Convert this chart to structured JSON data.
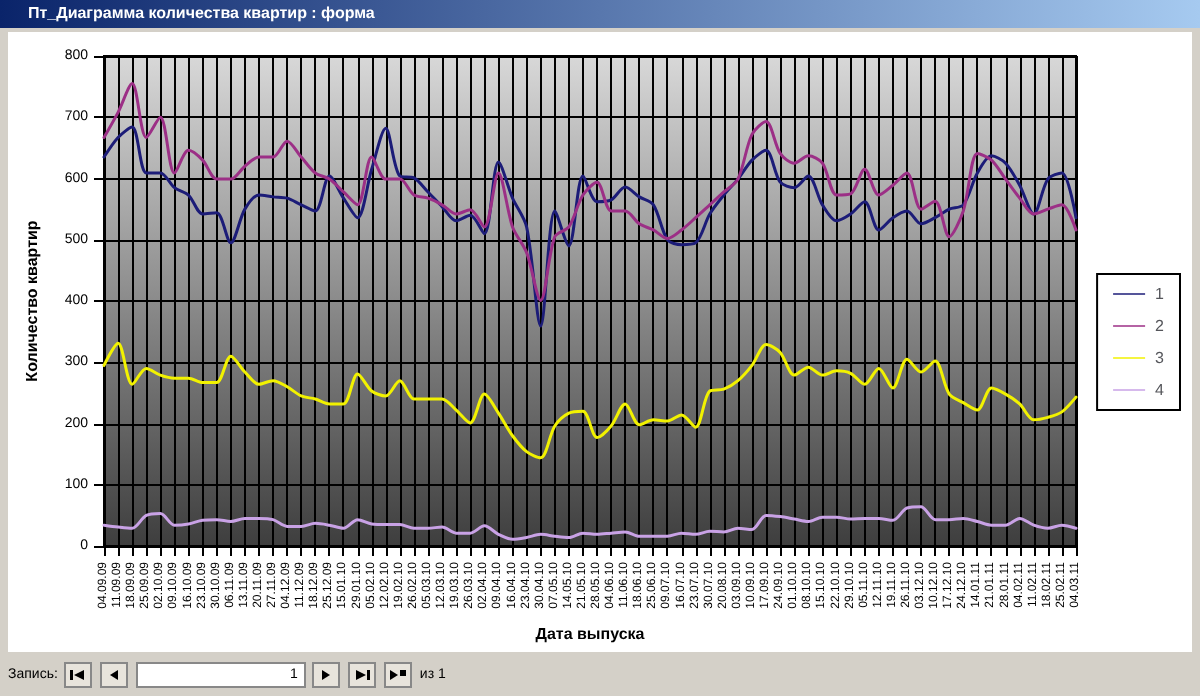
{
  "chart_data": {
    "type": "line",
    "title": "Пт_Диаграмма количества квартир : форма",
    "xlabel": "Дата выпуска",
    "ylabel": "Количество квартир",
    "annotations": [
      "Запись:",
      "1",
      "из 1"
    ],
    "categories": [
      "04.09.09",
      "11.09.09",
      "18.09.09",
      "25.09.09",
      "02.10.09",
      "09.10.09",
      "16.10.09",
      "23.10.09",
      "30.10.09",
      "06.11.09",
      "13.11.09",
      "20.11.09",
      "27.11.09",
      "04.12.09",
      "11.12.09",
      "18.12.09",
      "25.12.09",
      "15.01.10",
      "29.01.10",
      "05.02.10",
      "12.02.10",
      "19.02.10",
      "26.02.10",
      "05.03.10",
      "12.03.10",
      "19.03.10",
      "26.03.10",
      "02.04.10",
      "09.04.10",
      "16.04.10",
      "23.04.10",
      "30.04.10",
      "07.05.10",
      "14.05.10",
      "21.05.10",
      "28.05.10",
      "04.06.10",
      "11.06.10",
      "18.06.10",
      "25.06.10",
      "09.07.10",
      "16.07.10",
      "23.07.10",
      "30.07.10",
      "20.08.10",
      "03.09.10",
      "10.09.10",
      "17.09.10",
      "24.09.10",
      "01.10.10",
      "08.10.10",
      "15.10.10",
      "22.10.10",
      "29.10.10",
      "05.11.10",
      "12.11.10",
      "19.11.10",
      "26.11.10",
      "03.12.10",
      "10.12.10",
      "17.12.10",
      "24.12.10",
      "14.01.11",
      "21.01.11",
      "28.01.11",
      "04.02.11",
      "11.02.11",
      "18.02.11",
      "25.02.11",
      "04.03.11"
    ],
    "series": [
      {
        "name": "1",
        "color": "#1c1c78",
        "values": [
          635,
          667,
          684,
          609,
          609,
          585,
          573,
          542,
          544,
          495,
          550,
          573,
          570,
          568,
          557,
          547,
          604,
          568,
          536,
          615,
          682,
          604,
          601,
          578,
          554,
          531,
          540,
          510,
          627,
          568,
          521,
          359,
          547,
          490,
          604,
          562,
          565,
          586,
          570,
          557,
          500,
          492,
          495,
          542,
          573,
          599,
          630,
          646,
          594,
          585,
          604,
          557,
          531,
          542,
          562,
          516,
          536,
          547,
          526,
          536,
          550,
          557,
          609,
          637,
          625,
          589,
          542,
          599,
          609,
          536
        ]
      },
      {
        "name": "2",
        "color": "#9c2f86",
        "values": [
          667,
          708,
          755,
          667,
          700,
          609,
          646,
          630,
          599,
          599,
          620,
          635,
          635,
          661,
          635,
          609,
          599,
          578,
          557,
          635,
          599,
          599,
          573,
          568,
          557,
          542,
          549,
          521,
          609,
          521,
          479,
          401,
          505,
          521,
          573,
          594,
          547,
          547,
          526,
          516,
          502,
          516,
          536,
          557,
          578,
          599,
          672,
          693,
          641,
          625,
          637,
          625,
          573,
          575,
          615,
          573,
          589,
          609,
          550,
          563,
          505,
          547,
          641,
          630,
          599,
          568,
          542,
          550,
          557,
          516
        ]
      },
      {
        "name": "3",
        "color": "#f2f200",
        "values": [
          295,
          331,
          264,
          290,
          279,
          274,
          274,
          267,
          267,
          310,
          284,
          264,
          270,
          260,
          245,
          240,
          232,
          232,
          281,
          253,
          245,
          270,
          240,
          240,
          240,
          222,
          201,
          248,
          217,
          180,
          154,
          144,
          196,
          217,
          220,
          177,
          196,
          232,
          198,
          206,
          204,
          214,
          194,
          253,
          256,
          270,
          295,
          329,
          316,
          279,
          292,
          279,
          286,
          282,
          264,
          290,
          258,
          305,
          284,
          302,
          248,
          234,
          222,
          258,
          248,
          232,
          206,
          210,
          219,
          243
        ]
      },
      {
        "name": "4",
        "color": "#c9a2e6",
        "values": [
          34,
          31,
          29,
          50,
          53,
          34,
          36,
          42,
          43,
          40,
          45,
          45,
          43,
          32,
          32,
          37,
          34,
          29,
          43,
          36,
          35,
          35,
          29,
          29,
          31,
          21,
          21,
          33,
          19,
          11,
          14,
          19,
          16,
          14,
          21,
          19,
          21,
          23,
          16,
          16,
          16,
          21,
          19,
          24,
          23,
          29,
          27,
          50,
          48,
          44,
          40,
          47,
          47,
          44,
          45,
          45,
          42,
          62,
          64,
          43,
          43,
          45,
          40,
          34,
          34,
          45,
          34,
          29,
          34,
          29
        ]
      }
    ],
    "ylim": [
      0,
      800
    ],
    "yticks": [
      0,
      100,
      200,
      300,
      400,
      500,
      600,
      700,
      800
    ],
    "grid": true,
    "legend": "right",
    "marker": "none",
    "line_style": "solid"
  }
}
